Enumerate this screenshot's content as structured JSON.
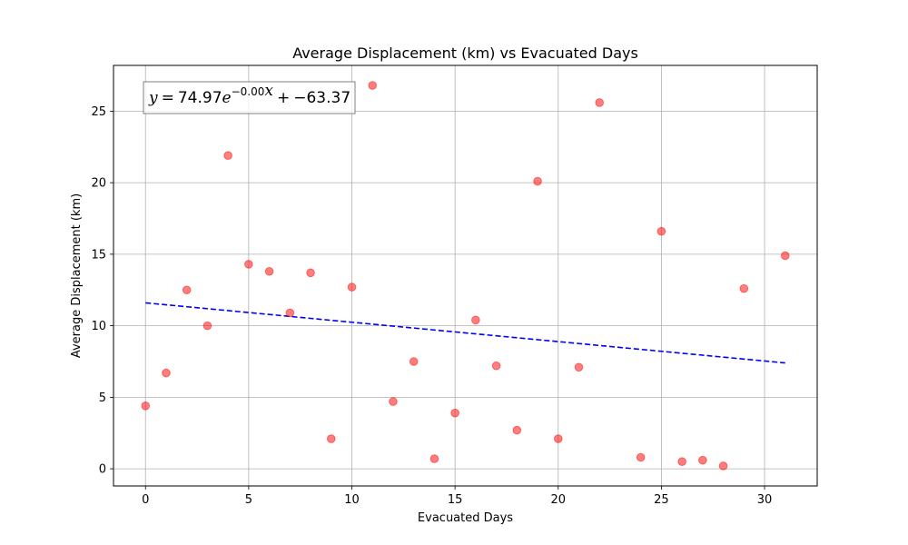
{
  "chart_data": {
    "type": "scatter",
    "title": "Average Displacement (km) vs Evacuated Days",
    "xlabel": "Evacuated Days",
    "ylabel": "Average Displacement (km)",
    "xlim": [
      -1.55,
      32.55
    ],
    "ylim": [
      -1.2,
      28.2
    ],
    "xticks": [
      0,
      5,
      10,
      15,
      20,
      25,
      30
    ],
    "yticks": [
      0,
      5,
      10,
      15,
      20,
      25
    ],
    "grid": true,
    "annotation": "y = 74.97e^{-0.00x} + -63.37",
    "colors": {
      "points": "#ff0000",
      "fit": "#0000ff",
      "grid": "#b0b0b0"
    },
    "series": [
      {
        "kind": "points",
        "x": [
          0,
          1,
          2,
          3,
          4,
          5,
          6,
          7,
          8,
          9,
          10,
          11,
          12,
          13,
          14,
          15,
          16,
          17,
          18,
          19,
          20,
          21,
          22,
          24,
          25,
          26,
          27,
          28,
          29,
          31
        ],
        "y": [
          4.4,
          6.7,
          12.5,
          10.0,
          21.9,
          14.3,
          13.8,
          10.9,
          13.7,
          2.1,
          12.7,
          26.8,
          4.7,
          7.5,
          0.7,
          3.9,
          10.4,
          7.2,
          2.7,
          20.1,
          2.1,
          7.1,
          25.6,
          0.8,
          16.6,
          0.5,
          0.6,
          0.2,
          12.6,
          14.9
        ]
      },
      {
        "kind": "fit",
        "x": [
          0,
          31
        ],
        "y": [
          11.6,
          7.4
        ]
      }
    ]
  }
}
